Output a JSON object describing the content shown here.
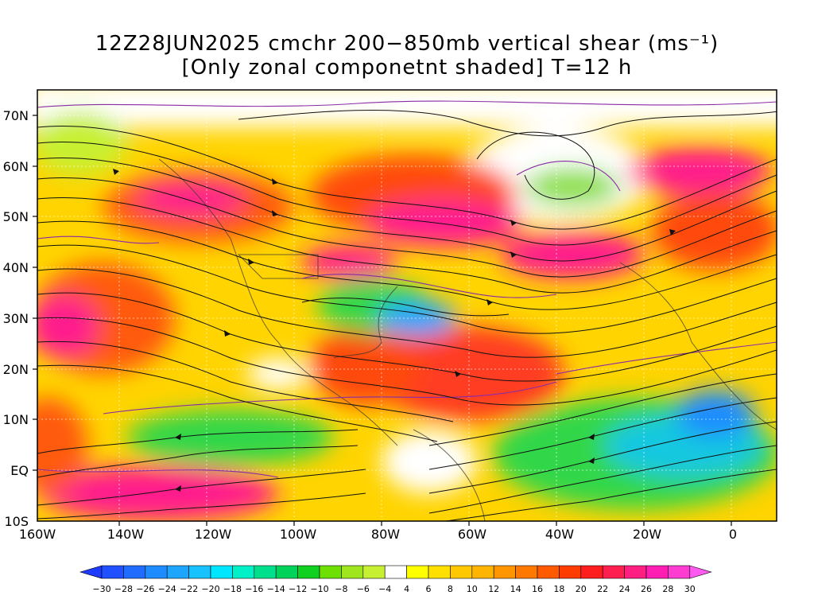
{
  "title": {
    "line1": "12Z28JUN2025 cmchr 200−850mb vertical shear (ms⁻¹)",
    "line2": "[Only zonal componetnt shaded] T=12 h"
  },
  "map": {
    "lat_labels": [
      "70N",
      "60N",
      "50N",
      "40N",
      "30N",
      "20N",
      "10N",
      "EQ",
      "10S"
    ],
    "lon_labels": [
      "160W",
      "140W",
      "120W",
      "100W",
      "80W",
      "60W",
      "40W",
      "20W",
      "0"
    ],
    "lat_extent": [
      -10,
      75
    ],
    "lon_extent": [
      -160,
      10
    ]
  },
  "colorbar": {
    "labels": [
      "-30",
      "-28",
      "-26",
      "-24",
      "-22",
      "-20",
      "-18",
      "-16",
      "-14",
      "-12",
      "-10",
      "-8",
      "-6",
      "-4",
      "4",
      "6",
      "8",
      "10",
      "12",
      "14",
      "16",
      "18",
      "20",
      "22",
      "24",
      "26",
      "28",
      "30"
    ],
    "colors": [
      "#1e3cff",
      "#2050ff",
      "#1f6cff",
      "#1e8cff",
      "#1ea6ff",
      "#18c2ff",
      "#00e6ff",
      "#00f0c8",
      "#00e08c",
      "#00d25a",
      "#10d020",
      "#6ee000",
      "#a0e61e",
      "#c8f032",
      "#ffffff",
      "#ffff00",
      "#ffe000",
      "#ffc800",
      "#ffb400",
      "#ff9600",
      "#ff7800",
      "#ff5a00",
      "#ff3c00",
      "#ff1e1e",
      "#ff1e50",
      "#ff1e82",
      "#ff1eb4",
      "#ff3cd2",
      "#ff5af0"
    ]
  },
  "field_colors": {
    "white": "#ffffff",
    "yellow": "#ffee00",
    "orange": "#ffa400",
    "red": "#ff4a10",
    "magenta": "#ff1e8c",
    "green": "#32d74a",
    "cyan": "#18c8d0",
    "blue": "#1e8cff",
    "contour": "#8a2ba6",
    "stream": "#111111"
  }
}
